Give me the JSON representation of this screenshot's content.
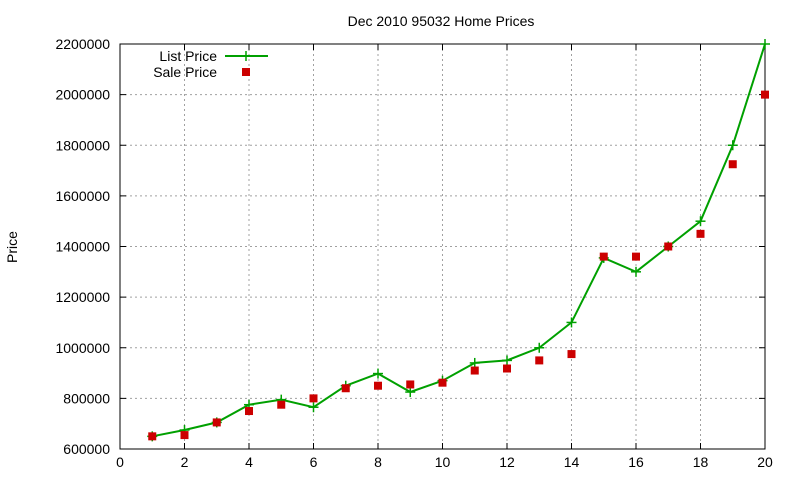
{
  "chart_data": {
    "type": "line",
    "title": "Dec 2010 95032 Home Prices",
    "xlabel": "",
    "ylabel": "Price",
    "xlim": [
      0,
      20
    ],
    "ylim": [
      600000,
      2200000
    ],
    "x_ticks": [
      "0",
      "2",
      "4",
      "6",
      "8",
      "10",
      "12",
      "14",
      "16",
      "18",
      "20"
    ],
    "y_ticks": [
      "600000",
      "800000",
      "1000000",
      "1200000",
      "1400000",
      "1600000",
      "1800000",
      "2000000",
      "2200000"
    ],
    "grid": true,
    "legend_position": "top-left",
    "series": [
      {
        "name": "List Price",
        "style": "line-with-plus-markers",
        "color": "#00a000",
        "x": [
          1,
          2,
          3,
          4,
          5,
          6,
          7,
          8,
          9,
          10,
          11,
          12,
          13,
          14,
          15,
          16,
          17,
          18,
          19,
          20
        ],
        "values": [
          650000,
          675000,
          705000,
          775000,
          795000,
          765000,
          850000,
          898000,
          825000,
          870000,
          940000,
          950000,
          1000000,
          1100000,
          1355000,
          1300000,
          1400000,
          1500000,
          1800000,
          2200000
        ]
      },
      {
        "name": "Sale Price",
        "style": "square-markers",
        "color": "#cc0000",
        "x": [
          1,
          2,
          3,
          4,
          5,
          6,
          7,
          8,
          9,
          10,
          11,
          12,
          13,
          14,
          15,
          16,
          17,
          18,
          19,
          20
        ],
        "values": [
          650000,
          655000,
          705000,
          750000,
          775000,
          800000,
          840000,
          850000,
          855000,
          862000,
          910000,
          918000,
          950000,
          975000,
          1360000,
          1360000,
          1400000,
          1450000,
          1725000,
          2000000
        ]
      }
    ]
  }
}
